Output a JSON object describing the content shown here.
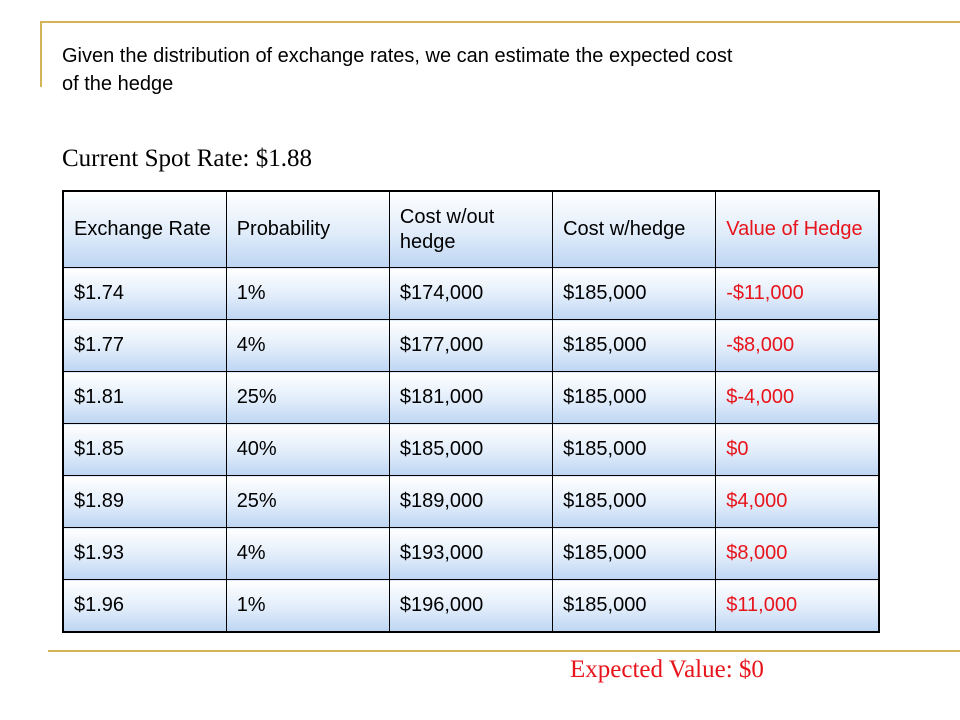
{
  "subtitle": "Given the distribution of exchange rates, we can estimate the expected cost of the hedge",
  "spot_rate": "Current Spot Rate: $1.88",
  "expected_value": "Expected Value: $0",
  "table": {
    "headers": [
      "Exchange Rate",
      "Probability",
      "Cost w/out hedge",
      "Cost w/hedge",
      "Value of Hedge"
    ],
    "rows": [
      [
        "$1.74",
        "1%",
        "$174,000",
        "$185,000",
        "-$11,000"
      ],
      [
        "$1.77",
        "4%",
        "$177,000",
        "$185,000",
        "-$8,000"
      ],
      [
        "$1.81",
        "25%",
        "$181,000",
        "$185,000",
        "$-4,000"
      ],
      [
        "$1.85",
        "40%",
        "$185,000",
        "$185,000",
        "$0"
      ],
      [
        "$1.89",
        "25%",
        "$189,000",
        "$185,000",
        "$4,000"
      ],
      [
        "$1.93",
        "4%",
        "$193,000",
        "$185,000",
        "$8,000"
      ],
      [
        "$1.96",
        "1%",
        "$196,000",
        "$185,000",
        "$11,000"
      ]
    ]
  },
  "colors": {
    "accent_line": "#d4b458",
    "highlight_text": "#e8141b",
    "cell_gradient_bottom": "#bdd5f3"
  }
}
